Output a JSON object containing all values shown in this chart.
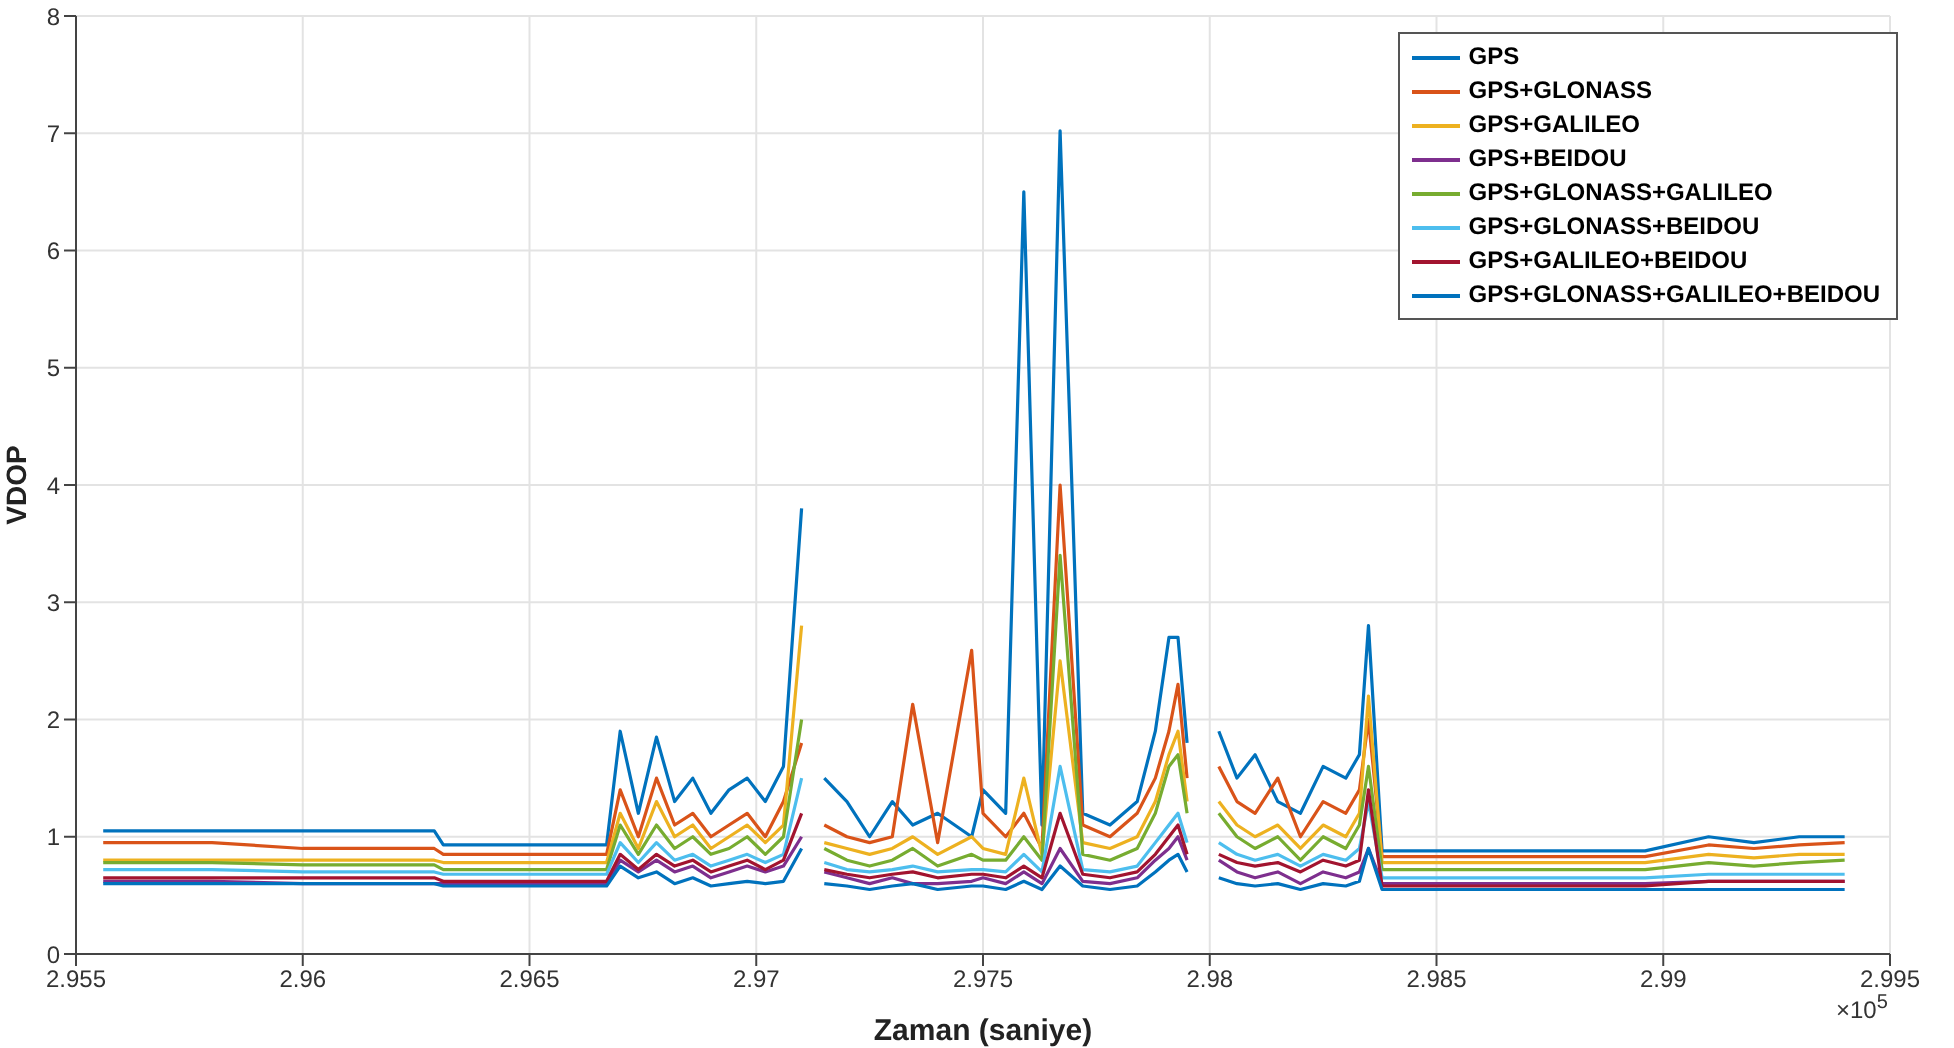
{
  "chart_data": {
    "type": "line",
    "xlabel": "Zaman (saniye)",
    "ylabel": "VDOP",
    "annotations": [
      "×10$^{5}$"
    ],
    "x": [
      2.9556,
      2.958,
      2.96,
      2.9629,
      2.9631,
      2.965,
      2.9667,
      2.967,
      2.9674,
      2.9678,
      2.9682,
      2.9686,
      2.969,
      2.9694,
      2.9698,
      2.9702,
      2.9706,
      2.971,
      2.97125,
      2.9715,
      2.972,
      2.9725,
      2.973,
      2.97345,
      2.974,
      2.97475,
      2.975,
      2.9755,
      2.9759,
      2.9763,
      2.9767,
      2.9772,
      2.9778,
      2.9784,
      2.9788,
      2.9791,
      2.9793,
      2.9795,
      2.9799,
      2.9802,
      2.9806,
      2.981,
      2.9815,
      2.982,
      2.9825,
      2.983,
      2.9833,
      2.9835,
      2.9838,
      2.986,
      2.9894,
      2.9896,
      2.991,
      2.992,
      2.993,
      2.994
    ],
    "xlim": [
      2.955,
      2.995
    ],
    "xticks": [
      2.955,
      2.96,
      2.965,
      2.97,
      2.975,
      2.98,
      2.985,
      2.99,
      2.995
    ],
    "ylim": [
      0,
      8
    ],
    "yticks": [
      0,
      1,
      2,
      3,
      4,
      5,
      6,
      7,
      8
    ],
    "grid": true,
    "legend": "top right",
    "line_style": "solid",
    "series": [
      {
        "name": "GPS",
        "color": "#0072bd",
        "values": [
          1.05,
          1.05,
          1.05,
          1.05,
          0.93,
          0.93,
          0.93,
          1.9,
          1.2,
          1.85,
          1.3,
          1.5,
          1.2,
          1.4,
          1.5,
          1.3,
          1.6,
          3.8,
          null,
          1.5,
          1.3,
          1.0,
          1.3,
          1.1,
          1.2,
          1.0,
          1.4,
          1.2,
          6.5,
          1.1,
          7.02,
          1.2,
          1.1,
          1.3,
          1.9,
          2.7,
          2.7,
          1.8,
          null,
          1.9,
          1.5,
          1.7,
          1.3,
          1.2,
          1.6,
          1.5,
          1.7,
          2.8,
          0.88,
          0.88,
          0.88,
          0.88,
          1.0,
          0.95,
          1.0,
          1.0
        ]
      },
      {
        "name": "GPS+GLONASS",
        "color": "#d95319",
        "values": [
          0.95,
          0.95,
          0.9,
          0.9,
          0.85,
          0.85,
          0.85,
          1.4,
          1.0,
          1.5,
          1.1,
          1.2,
          1.0,
          1.1,
          1.2,
          1.0,
          1.3,
          1.8,
          null,
          1.1,
          1.0,
          0.95,
          1.0,
          2.13,
          0.95,
          2.59,
          1.2,
          1.0,
          1.2,
          0.9,
          4.0,
          1.1,
          1.0,
          1.2,
          1.5,
          1.9,
          2.3,
          1.5,
          null,
          1.6,
          1.3,
          1.2,
          1.5,
          1.0,
          1.3,
          1.2,
          1.4,
          2.0,
          0.83,
          0.83,
          0.83,
          0.83,
          0.93,
          0.9,
          0.93,
          0.95
        ]
      },
      {
        "name": "GPS+GALILEO",
        "color": "#edb120",
        "values": [
          0.8,
          0.8,
          0.8,
          0.8,
          0.78,
          0.78,
          0.78,
          1.2,
          0.9,
          1.3,
          1.0,
          1.1,
          0.9,
          1.0,
          1.1,
          0.95,
          1.1,
          2.8,
          null,
          0.95,
          0.9,
          0.85,
          0.9,
          1.0,
          0.85,
          1.0,
          0.9,
          0.85,
          1.5,
          0.85,
          2.5,
          0.95,
          0.9,
          1.0,
          1.3,
          1.7,
          1.9,
          1.3,
          null,
          1.3,
          1.1,
          1.0,
          1.1,
          0.9,
          1.1,
          1.0,
          1.2,
          2.2,
          0.78,
          0.78,
          0.78,
          0.78,
          0.85,
          0.82,
          0.85,
          0.85
        ]
      },
      {
        "name": "GPS+BEIDOU",
        "color": "#7e2f8e",
        "values": [
          0.62,
          0.62,
          0.6,
          0.6,
          0.6,
          0.6,
          0.6,
          0.8,
          0.7,
          0.8,
          0.7,
          0.75,
          0.65,
          0.7,
          0.75,
          0.7,
          0.75,
          1.0,
          null,
          0.7,
          0.65,
          0.6,
          0.65,
          0.6,
          0.6,
          0.62,
          0.65,
          0.6,
          0.7,
          0.6,
          0.9,
          0.62,
          0.6,
          0.65,
          0.8,
          0.9,
          1.0,
          0.8,
          null,
          0.8,
          0.7,
          0.65,
          0.7,
          0.6,
          0.7,
          0.65,
          0.7,
          0.9,
          0.6,
          0.6,
          0.6,
          0.6,
          0.62,
          0.62,
          0.62,
          0.62
        ]
      },
      {
        "name": "GPS+GLONASS+GALILEO",
        "color": "#77ac30",
        "values": [
          0.78,
          0.78,
          0.76,
          0.76,
          0.72,
          0.72,
          0.72,
          1.1,
          0.85,
          1.1,
          0.9,
          1.0,
          0.85,
          0.9,
          1.0,
          0.85,
          1.0,
          2.0,
          null,
          0.9,
          0.8,
          0.75,
          0.8,
          0.9,
          0.75,
          0.85,
          0.8,
          0.8,
          1.0,
          0.8,
          3.4,
          0.85,
          0.8,
          0.9,
          1.2,
          1.6,
          1.7,
          1.2,
          null,
          1.2,
          1.0,
          0.9,
          1.0,
          0.8,
          1.0,
          0.9,
          1.1,
          1.6,
          0.72,
          0.72,
          0.72,
          0.72,
          0.78,
          0.75,
          0.78,
          0.8
        ]
      },
      {
        "name": "GPS+GLONASS+BEIDOU",
        "color": "#4dbeee",
        "values": [
          0.72,
          0.72,
          0.7,
          0.7,
          0.68,
          0.68,
          0.68,
          0.95,
          0.78,
          0.95,
          0.8,
          0.85,
          0.75,
          0.8,
          0.85,
          0.78,
          0.85,
          1.5,
          null,
          0.78,
          0.72,
          0.7,
          0.72,
          0.75,
          0.7,
          0.72,
          0.72,
          0.7,
          0.85,
          0.7,
          1.6,
          0.72,
          0.7,
          0.75,
          0.95,
          1.1,
          1.2,
          0.95,
          null,
          0.95,
          0.85,
          0.8,
          0.85,
          0.75,
          0.85,
          0.8,
          0.9,
          1.3,
          0.65,
          0.65,
          0.65,
          0.65,
          0.68,
          0.68,
          0.68,
          0.68
        ]
      },
      {
        "name": "GPS+GALILEO+BEIDOU",
        "color": "#a2142f",
        "values": [
          0.65,
          0.65,
          0.65,
          0.65,
          0.62,
          0.62,
          0.62,
          0.85,
          0.72,
          0.85,
          0.75,
          0.8,
          0.7,
          0.75,
          0.8,
          0.72,
          0.8,
          1.2,
          null,
          0.72,
          0.68,
          0.65,
          0.68,
          0.7,
          0.65,
          0.68,
          0.68,
          0.65,
          0.75,
          0.65,
          1.2,
          0.68,
          0.65,
          0.7,
          0.85,
          1.0,
          1.1,
          0.85,
          null,
          0.85,
          0.78,
          0.75,
          0.78,
          0.7,
          0.8,
          0.75,
          0.8,
          1.4,
          0.58,
          0.58,
          0.58,
          0.58,
          0.62,
          0.62,
          0.62,
          0.62
        ]
      },
      {
        "name": "GPS+GLONASS+GALILEO+BEIDOU",
        "color": "#0072bd",
        "values": [
          0.6,
          0.6,
          0.6,
          0.6,
          0.58,
          0.58,
          0.58,
          0.75,
          0.65,
          0.7,
          0.6,
          0.65,
          0.58,
          0.6,
          0.62,
          0.6,
          0.62,
          0.9,
          null,
          0.6,
          0.58,
          0.55,
          0.58,
          0.6,
          0.55,
          0.58,
          0.58,
          0.55,
          0.62,
          0.55,
          0.75,
          0.58,
          0.55,
          0.58,
          0.7,
          0.8,
          0.85,
          0.7,
          null,
          0.65,
          0.6,
          0.58,
          0.6,
          0.55,
          0.6,
          0.58,
          0.62,
          0.9,
          0.55,
          0.55,
          0.55,
          0.55,
          0.55,
          0.55,
          0.55,
          0.55
        ]
      }
    ]
  }
}
